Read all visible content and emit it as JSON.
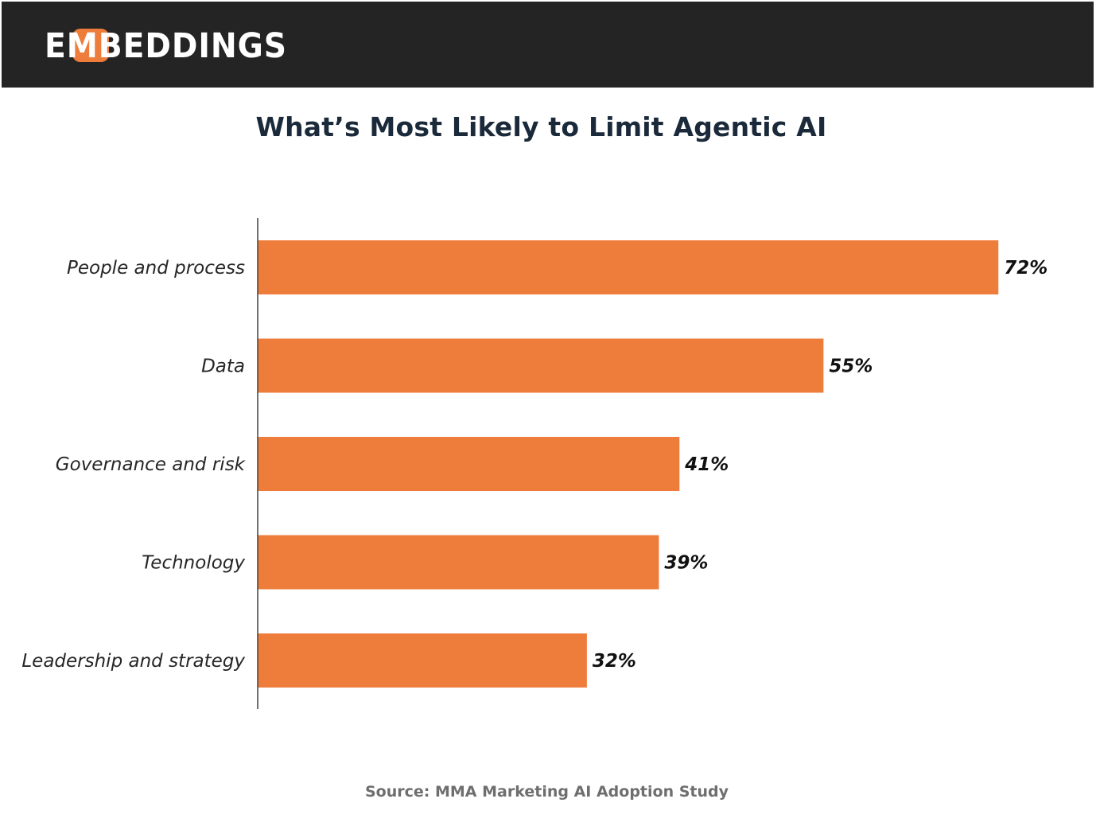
{
  "header": {
    "logo_text": "EMBEDDINGS",
    "logo_accent_color": "#ee7d3b",
    "background_color": "#242424"
  },
  "chart_data": {
    "type": "bar",
    "orientation": "horizontal",
    "title": "What’s Most Likely to Limit Agentic AI",
    "categories": [
      "People and process",
      "Data",
      "Governance and risk",
      "Technology",
      "Leadership and strategy"
    ],
    "values": [
      72,
      55,
      41,
      39,
      32
    ],
    "value_labels": [
      "72%",
      "55%",
      "41%",
      "39%",
      "32%"
    ],
    "xlabel": "",
    "ylabel": "",
    "xlim": [
      0,
      76
    ],
    "grid": false,
    "bar_color": "#ee7d3b"
  },
  "footer": {
    "source": "Source: MMA Marketing AI Adoption Study"
  }
}
